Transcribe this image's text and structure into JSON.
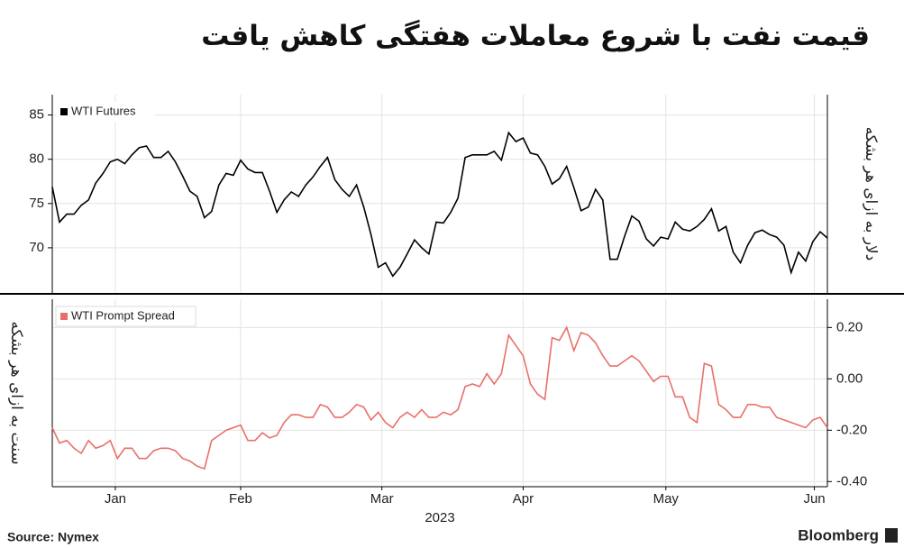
{
  "chart_data": [
    {
      "type": "line",
      "title": "قیمت نفت با شروع معاملات هفتگی کاهش یافت",
      "y_label": "دلار به ازای هر بشکه",
      "series": [
        {
          "name": "WTI Futures",
          "color": "#000000",
          "values": [
            76.9,
            72.9,
            73.8,
            73.8,
            74.8,
            75.4,
            77.3,
            78.4,
            79.7,
            80.0,
            79.5,
            80.5,
            81.3,
            81.5,
            80.2,
            80.2,
            80.9,
            79.7,
            78.1,
            76.4,
            75.8,
            73.4,
            74.1,
            77.1,
            78.4,
            78.2,
            79.9,
            78.9,
            78.5,
            78.5,
            76.4,
            74.0,
            75.4,
            76.3,
            75.8,
            77.1,
            78.0,
            79.2,
            80.2,
            77.7,
            76.6,
            75.8,
            77.1,
            74.6,
            71.5,
            67.8,
            68.3,
            66.8,
            67.8,
            69.3,
            70.9,
            70.0,
            69.3,
            72.9,
            72.8,
            74.0,
            75.6,
            80.2,
            80.5,
            80.5,
            80.5,
            80.9,
            79.9,
            83.0,
            82.0,
            82.4,
            80.7,
            80.5,
            79.2,
            77.2,
            77.8,
            79.2,
            76.8,
            74.2,
            74.6,
            76.6,
            75.4,
            68.7,
            68.7,
            71.3,
            73.6,
            73.0,
            71.0,
            70.2,
            71.2,
            71.0,
            72.9,
            72.1,
            71.9,
            72.4,
            73.2,
            74.4,
            71.9,
            72.4,
            69.5,
            68.3,
            70.3,
            71.7,
            72.0,
            71.5,
            71.2,
            70.3,
            67.2,
            69.5,
            68.5,
            70.7,
            71.8,
            71.1
          ]
        }
      ],
      "xlim": [
        0,
        107
      ],
      "ylim": [
        64.9,
        87.3
      ],
      "yticks": [
        70,
        75,
        80,
        85
      ],
      "grid": true,
      "tick_side": "left"
    },
    {
      "type": "line",
      "y_label": "سنت به ازای هر بشکه",
      "x_label": "2023",
      "series": [
        {
          "name": "WTI Prompt Spread",
          "color": "#e8706a",
          "values": [
            -0.19,
            -0.25,
            -0.24,
            -0.27,
            -0.29,
            -0.24,
            -0.27,
            -0.26,
            -0.24,
            -0.31,
            -0.27,
            -0.27,
            -0.31,
            -0.31,
            -0.28,
            -0.27,
            -0.27,
            -0.28,
            -0.31,
            -0.32,
            -0.34,
            -0.35,
            -0.24,
            -0.22,
            -0.2,
            -0.19,
            -0.18,
            -0.24,
            -0.24,
            -0.21,
            -0.23,
            -0.22,
            -0.17,
            -0.14,
            -0.14,
            -0.15,
            -0.15,
            -0.1,
            -0.11,
            -0.15,
            -0.15,
            -0.13,
            -0.1,
            -0.11,
            -0.16,
            -0.13,
            -0.17,
            -0.19,
            -0.15,
            -0.13,
            -0.15,
            -0.12,
            -0.15,
            -0.15,
            -0.13,
            -0.14,
            -0.12,
            -0.03,
            -0.02,
            -0.03,
            0.02,
            -0.02,
            0.02,
            0.17,
            0.13,
            0.09,
            -0.02,
            -0.06,
            -0.08,
            0.16,
            0.15,
            0.2,
            0.11,
            0.18,
            0.17,
            0.14,
            0.09,
            0.05,
            0.05,
            0.07,
            0.09,
            0.07,
            0.03,
            -0.01,
            0.01,
            0.01,
            -0.07,
            -0.07,
            -0.15,
            -0.17,
            0.06,
            0.05,
            -0.1,
            -0.12,
            -0.15,
            -0.15,
            -0.1,
            -0.1,
            -0.11,
            -0.11,
            -0.15,
            -0.16,
            -0.17,
            -0.18,
            -0.19,
            -0.16,
            -0.15,
            -0.19
          ]
        }
      ],
      "xlim": [
        0,
        107
      ],
      "ylim": [
        -0.42,
        0.31
      ],
      "yticks": [
        {
          "value": 0.2,
          "label": "0.20"
        },
        {
          "value": 0,
          "label": "0.00"
        },
        {
          "value": -0.2,
          "label": "-0.20"
        },
        {
          "value": -0.4,
          "label": "-0.40"
        }
      ],
      "xticks": [
        {
          "value": 8.7,
          "label": "Jan"
        },
        {
          "value": 26,
          "label": "Feb"
        },
        {
          "value": 45.5,
          "label": "Mar"
        },
        {
          "value": 65,
          "label": "Apr"
        },
        {
          "value": 84.7,
          "label": "May"
        },
        {
          "value": 105.2,
          "label": "Jun"
        }
      ],
      "grid": true,
      "tick_side": "right"
    }
  ],
  "footer": {
    "source": "Source: Nymex",
    "brand": "Bloomberg"
  }
}
